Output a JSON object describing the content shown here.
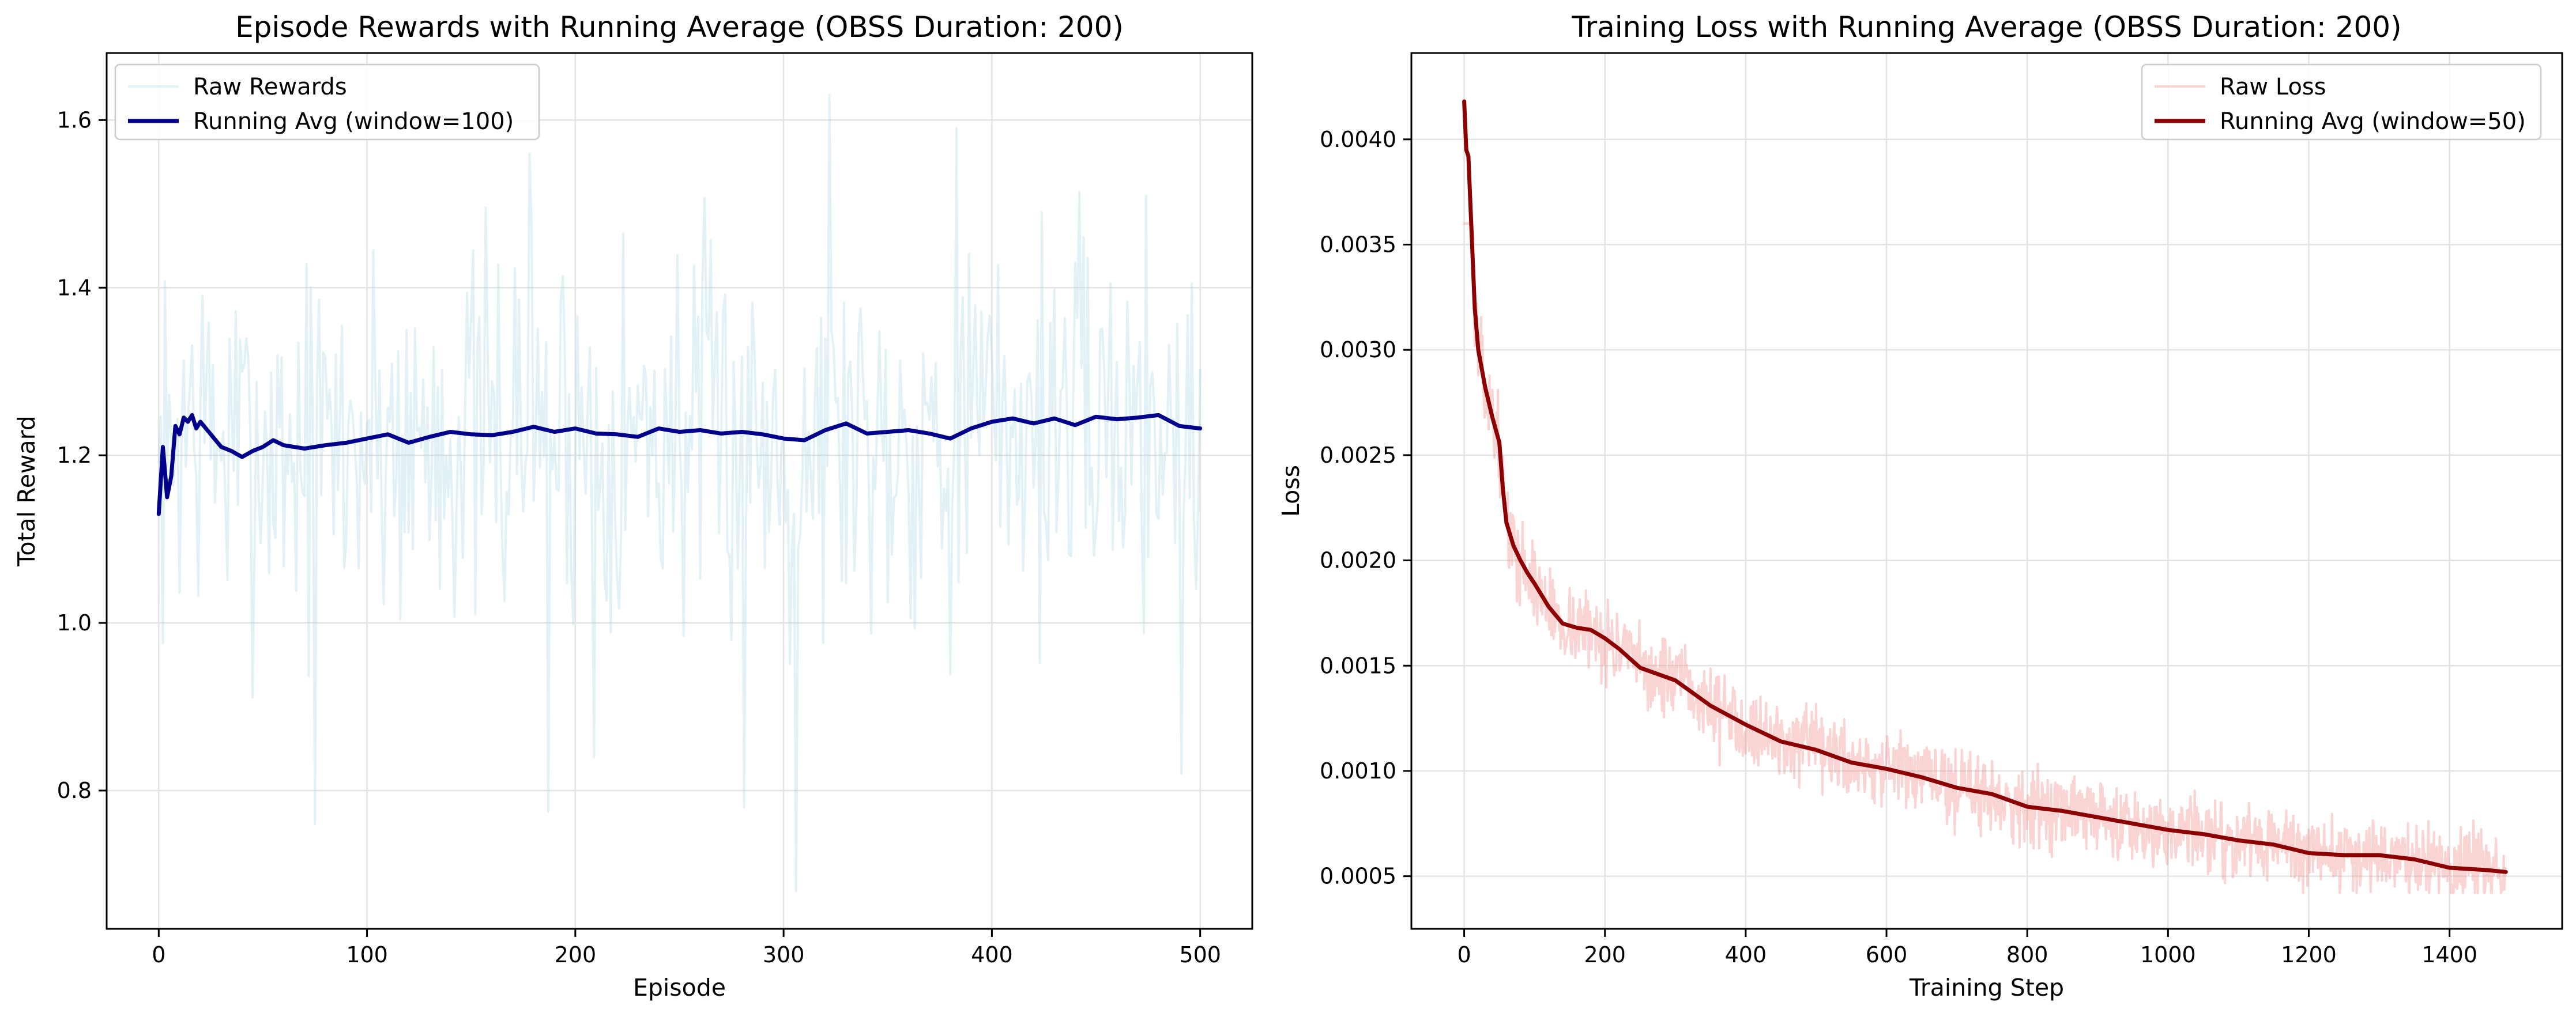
{
  "figure": {
    "background": "#ffffff",
    "grid_color": "#e3e3e3"
  },
  "chart_data": [
    {
      "type": "line",
      "title": "Episode Rewards with Running Average (OBSS Duration: 200)",
      "xlabel": "Episode",
      "ylabel": "Total Reward",
      "xlim": [
        -25,
        525
      ],
      "ylim": [
        0.635,
        1.68
      ],
      "xticks": [
        0,
        100,
        200,
        300,
        400,
        500
      ],
      "xtick_labels": [
        "0",
        "100",
        "200",
        "300",
        "400",
        "500"
      ],
      "yticks": [
        0.8,
        1.0,
        1.2,
        1.4,
        1.6
      ],
      "ytick_labels": [
        "0.8",
        "1.0",
        "1.2",
        "1.4",
        "1.6"
      ],
      "grid": true,
      "legend_position": "upper-left",
      "raw_seed": 7,
      "series": [
        {
          "name": "Raw Rewards",
          "role": "raw",
          "color": "#add8e6",
          "opacity": 0.35,
          "count": 501,
          "noise": 0.115,
          "min": 0.68,
          "max": 1.63,
          "spikes": [
            [
              75,
              0.76
            ],
            [
              187,
              0.775
            ],
            [
              209,
              0.84
            ],
            [
              281,
              0.78
            ],
            [
              306,
              0.68
            ],
            [
              322,
              1.63
            ],
            [
              491,
              0.82
            ],
            [
              178,
              1.56
            ],
            [
              383,
              1.59
            ]
          ]
        },
        {
          "name": "Running Avg (window=100)",
          "role": "avg",
          "color": "#00008b",
          "x": [
            0,
            2,
            4,
            6,
            8,
            10,
            12,
            14,
            16,
            18,
            20,
            25,
            30,
            35,
            40,
            45,
            50,
            55,
            60,
            70,
            80,
            90,
            100,
            110,
            120,
            130,
            140,
            150,
            160,
            170,
            180,
            190,
            200,
            210,
            220,
            230,
            240,
            250,
            260,
            270,
            280,
            290,
            300,
            310,
            320,
            330,
            340,
            350,
            360,
            370,
            380,
            390,
            400,
            410,
            420,
            430,
            440,
            450,
            460,
            470,
            480,
            490,
            500
          ],
          "y": [
            1.13,
            1.21,
            1.15,
            1.175,
            1.235,
            1.225,
            1.245,
            1.24,
            1.248,
            1.232,
            1.24,
            1.225,
            1.21,
            1.205,
            1.198,
            1.205,
            1.21,
            1.218,
            1.212,
            1.208,
            1.212,
            1.215,
            1.22,
            1.225,
            1.215,
            1.222,
            1.228,
            1.225,
            1.224,
            1.228,
            1.234,
            1.228,
            1.232,
            1.226,
            1.225,
            1.222,
            1.232,
            1.228,
            1.23,
            1.226,
            1.228,
            1.225,
            1.22,
            1.218,
            1.23,
            1.238,
            1.226,
            1.228,
            1.23,
            1.226,
            1.22,
            1.232,
            1.24,
            1.244,
            1.238,
            1.244,
            1.236,
            1.246,
            1.243,
            1.245,
            1.248,
            1.235,
            1.232
          ]
        }
      ]
    },
    {
      "type": "line",
      "title": "Training Loss with Running Average (OBSS Duration: 200)",
      "xlabel": "Training Step",
      "ylabel": "Loss",
      "xlim": [
        -75,
        1560
      ],
      "ylim": [
        0.00025,
        0.00441
      ],
      "xticks": [
        0,
        200,
        400,
        600,
        800,
        1000,
        1200,
        1400
      ],
      "xtick_labels": [
        "0",
        "200",
        "400",
        "600",
        "800",
        "1000",
        "1200",
        "1400"
      ],
      "yticks": [
        0.0005,
        0.001,
        0.0015,
        0.002,
        0.0025,
        0.003,
        0.0035,
        0.004
      ],
      "ytick_labels": [
        "0.0005",
        "0.0010",
        "0.0015",
        "0.0020",
        "0.0025",
        "0.0030",
        "0.0035",
        "0.0040"
      ],
      "grid": true,
      "legend_position": "upper-right",
      "raw_seed": 13,
      "series": [
        {
          "name": "Raw Loss",
          "role": "raw",
          "color": "#f08080",
          "opacity": 0.35,
          "count": 1481,
          "noise": 9e-05,
          "min": 0.00042,
          "max": 0.0036,
          "spikes": []
        },
        {
          "name": "Running Avg (window=50)",
          "role": "avg",
          "color": "#8b0000",
          "x": [
            0,
            3,
            6,
            10,
            15,
            20,
            30,
            40,
            50,
            55,
            60,
            70,
            80,
            90,
            100,
            120,
            140,
            160,
            180,
            200,
            220,
            250,
            300,
            350,
            400,
            450,
            500,
            550,
            600,
            650,
            700,
            750,
            800,
            850,
            900,
            950,
            1000,
            1050,
            1100,
            1150,
            1200,
            1250,
            1300,
            1350,
            1400,
            1450,
            1480
          ],
          "y": [
            0.00418,
            0.00395,
            0.00392,
            0.0036,
            0.0032,
            0.003,
            0.00282,
            0.00268,
            0.00256,
            0.00234,
            0.00218,
            0.00207,
            0.002,
            0.00194,
            0.00189,
            0.00178,
            0.0017,
            0.00168,
            0.00167,
            0.00163,
            0.00158,
            0.00149,
            0.00143,
            0.00131,
            0.00122,
            0.00114,
            0.0011,
            0.00104,
            0.00101,
            0.00097,
            0.00092,
            0.00089,
            0.00083,
            0.00081,
            0.00078,
            0.00075,
            0.00072,
            0.0007,
            0.00067,
            0.00065,
            0.00061,
            0.0006,
            0.0006,
            0.00058,
            0.00054,
            0.00053,
            0.00052
          ]
        }
      ]
    }
  ]
}
